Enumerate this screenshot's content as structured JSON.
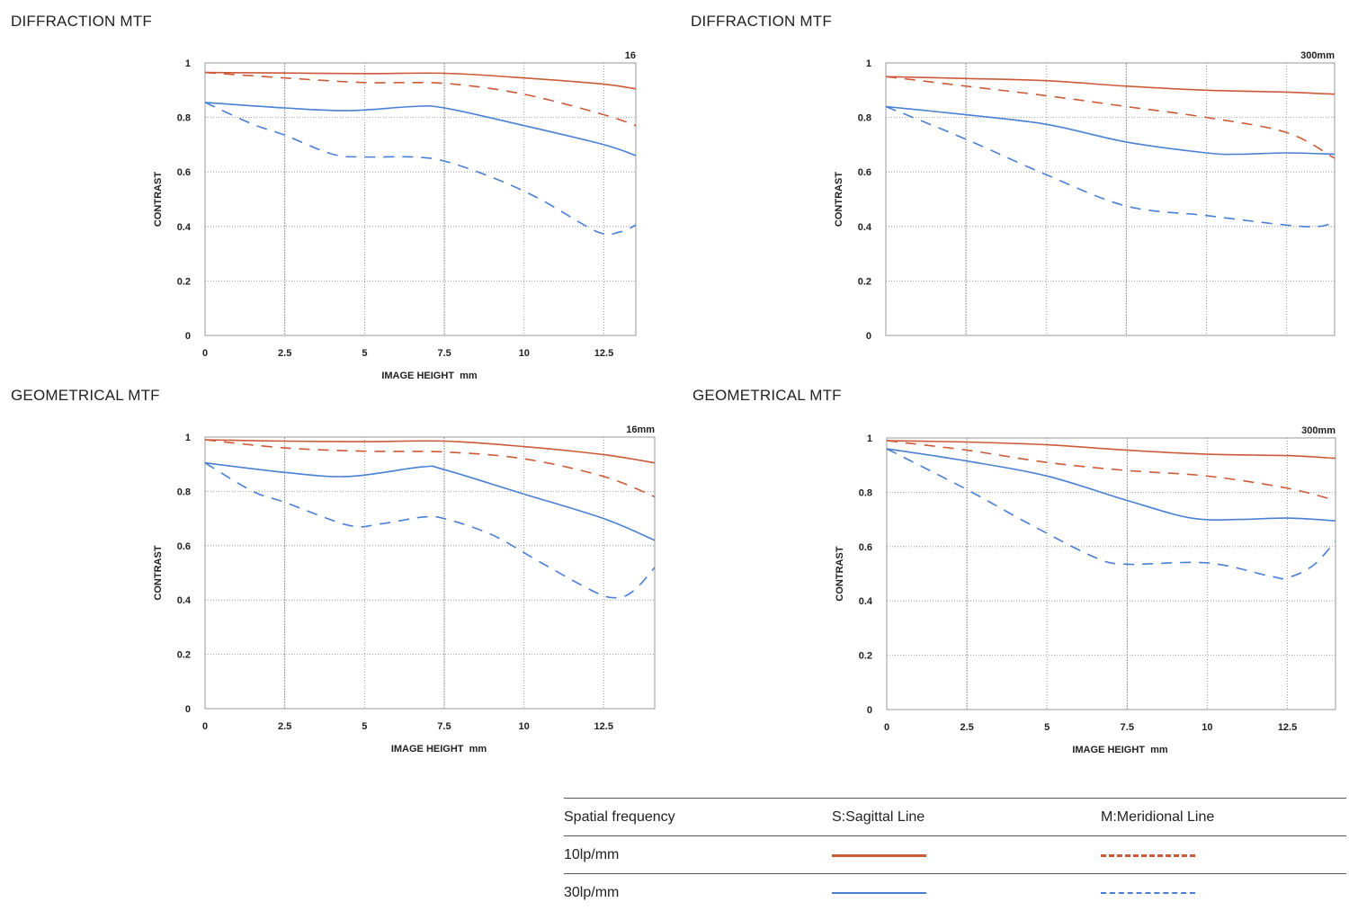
{
  "colors": {
    "s10": "#cc5a38",
    "m10": "#cc5a38",
    "s30": "#4a7fd4",
    "m30": "#4a7fd4",
    "grid": "#888888",
    "frame": "#999999"
  },
  "sections": [
    {
      "title": "DIFFRACTION MTF"
    },
    {
      "title": "DIFFRACTION MTF"
    },
    {
      "title": "GEOMETRICAL MTF"
    },
    {
      "title": "GEOMETRICAL MTF"
    }
  ],
  "legend": {
    "header": {
      "col1": "Spatial frequency",
      "col2": "S:Sagittal Line",
      "col3": "M:Meridional Line"
    },
    "rows": [
      {
        "label": "10lp/mm"
      },
      {
        "label": "30lp/mm"
      }
    ]
  },
  "chart_data": [
    {
      "type": "line",
      "title": "DIFFRACTION MTF",
      "focal": "16",
      "xlabel": "IMAGE HEIGHT  mm",
      "ylabel": "CONTRAST",
      "xlim": [
        0,
        13.5
      ],
      "ylim": [
        0,
        1
      ],
      "xticks": [
        "0",
        "2.5",
        "5",
        "7.5",
        "10",
        "12.5"
      ],
      "yticks": [
        "0",
        "0.2",
        "0.4",
        "0.6",
        "0.8",
        "1"
      ],
      "series": [
        {
          "key": "s10",
          "x": [
            0,
            2.5,
            5,
            7.5,
            10,
            12.5,
            13.5
          ],
          "values": [
            0.965,
            0.963,
            0.961,
            0.962,
            0.945,
            0.922,
            0.905
          ]
        },
        {
          "key": "m10",
          "x": [
            0,
            2.5,
            5,
            7.5,
            10,
            12.5,
            13.5
          ],
          "values": [
            0.965,
            0.945,
            0.928,
            0.925,
            0.885,
            0.81,
            0.77
          ]
        },
        {
          "key": "s30",
          "x": [
            0,
            2.5,
            4.5,
            6.5,
            7.5,
            10,
            12.5,
            13.5
          ],
          "values": [
            0.855,
            0.835,
            0.825,
            0.84,
            0.835,
            0.77,
            0.7,
            0.66
          ]
        },
        {
          "key": "m30",
          "x": [
            0,
            1.5,
            2.5,
            4,
            5,
            6.5,
            7.5,
            9,
            10.5,
            12.3,
            13,
            13.5
          ],
          "values": [
            0.855,
            0.775,
            0.735,
            0.665,
            0.655,
            0.655,
            0.64,
            0.58,
            0.5,
            0.38,
            0.38,
            0.405
          ]
        }
      ]
    },
    {
      "type": "line",
      "title": "DIFFRACTION MTF",
      "focal": "300mm",
      "xlabel": "",
      "ylabel": "CONTRAST",
      "xlim": [
        0,
        14
      ],
      "ylim": [
        0,
        1
      ],
      "xticks": [],
      "yticks": [
        "0",
        "0.2",
        "0.4",
        "0.6",
        "0.8",
        "1"
      ],
      "series": [
        {
          "key": "s10",
          "x": [
            0,
            2.5,
            5,
            7.5,
            10,
            12.5,
            14
          ],
          "values": [
            0.95,
            0.943,
            0.935,
            0.915,
            0.9,
            0.893,
            0.885
          ]
        },
        {
          "key": "m10",
          "x": [
            0,
            2.5,
            5,
            7.5,
            10,
            12.5,
            14
          ],
          "values": [
            0.95,
            0.915,
            0.88,
            0.84,
            0.8,
            0.745,
            0.65
          ]
        },
        {
          "key": "s30",
          "x": [
            0,
            2.5,
            5,
            7.5,
            10,
            11,
            12.5,
            14
          ],
          "values": [
            0.84,
            0.81,
            0.775,
            0.71,
            0.67,
            0.665,
            0.67,
            0.665
          ]
        },
        {
          "key": "m30",
          "x": [
            0,
            2.5,
            5,
            7.5,
            10,
            12.5,
            13.5,
            14
          ],
          "values": [
            0.84,
            0.72,
            0.59,
            0.475,
            0.44,
            0.405,
            0.4,
            0.415
          ]
        }
      ]
    },
    {
      "type": "line",
      "title": "GEOMETRICAL MTF",
      "focal": "16mm",
      "xlabel": "IMAGE HEIGHT  mm",
      "ylabel": "CONTRAST",
      "xlim": [
        0,
        14.1
      ],
      "ylim": [
        0,
        1
      ],
      "xticks": [
        "0",
        "2.5",
        "5",
        "7.5",
        "10",
        "12.5"
      ],
      "yticks": [
        "0",
        "0.2",
        "0.4",
        "0.6",
        "0.8",
        "1"
      ],
      "series": [
        {
          "key": "s10",
          "x": [
            0,
            2.5,
            5,
            7.5,
            10,
            12.5,
            14.1
          ],
          "values": [
            0.99,
            0.985,
            0.983,
            0.985,
            0.965,
            0.935,
            0.905
          ]
        },
        {
          "key": "m10",
          "x": [
            0,
            2.5,
            5,
            7.5,
            10,
            12.5,
            14.1
          ],
          "values": [
            0.99,
            0.96,
            0.948,
            0.945,
            0.92,
            0.855,
            0.78
          ]
        },
        {
          "key": "s30",
          "x": [
            0,
            2.5,
            4.5,
            6.8,
            7.5,
            10,
            12.5,
            14.1
          ],
          "values": [
            0.905,
            0.87,
            0.855,
            0.89,
            0.88,
            0.79,
            0.7,
            0.62
          ]
        },
        {
          "key": "m30",
          "x": [
            0,
            1.5,
            2.5,
            4.5,
            5.5,
            6.8,
            7.5,
            9,
            10.5,
            12.3,
            13,
            13.5,
            14.1
          ],
          "values": [
            0.905,
            0.8,
            0.76,
            0.675,
            0.68,
            0.705,
            0.7,
            0.64,
            0.54,
            0.425,
            0.41,
            0.44,
            0.52
          ]
        }
      ]
    },
    {
      "type": "line",
      "title": "GEOMETRICAL MTF",
      "focal": "300mm",
      "xlabel": "IMAGE HEIGHT  mm",
      "ylabel": "CONTRAST",
      "xlim": [
        0,
        14
      ],
      "ylim": [
        0,
        1
      ],
      "xticks": [
        "0",
        "2.5",
        "5",
        "7.5",
        "10",
        "12.5"
      ],
      "yticks": [
        "0",
        "0.2",
        "0.4",
        "0.6",
        "0.8",
        "1"
      ],
      "series": [
        {
          "key": "s10",
          "x": [
            0,
            2.5,
            5,
            7.5,
            10,
            12.5,
            14
          ],
          "values": [
            0.99,
            0.985,
            0.975,
            0.955,
            0.94,
            0.935,
            0.925
          ]
        },
        {
          "key": "m10",
          "x": [
            0,
            2.5,
            5,
            7.5,
            10,
            12.5,
            14
          ],
          "values": [
            0.99,
            0.955,
            0.91,
            0.88,
            0.86,
            0.815,
            0.77
          ]
        },
        {
          "key": "s30",
          "x": [
            0,
            2.5,
            5,
            7.5,
            9.5,
            11,
            12.5,
            14
          ],
          "values": [
            0.96,
            0.915,
            0.86,
            0.77,
            0.705,
            0.7,
            0.705,
            0.695
          ]
        },
        {
          "key": "m30",
          "x": [
            0,
            2.5,
            4.5,
            6.5,
            7.5,
            10,
            12,
            12.5,
            13.3,
            14
          ],
          "values": [
            0.96,
            0.81,
            0.68,
            0.56,
            0.535,
            0.54,
            0.49,
            0.485,
            0.53,
            0.62
          ]
        }
      ]
    }
  ]
}
